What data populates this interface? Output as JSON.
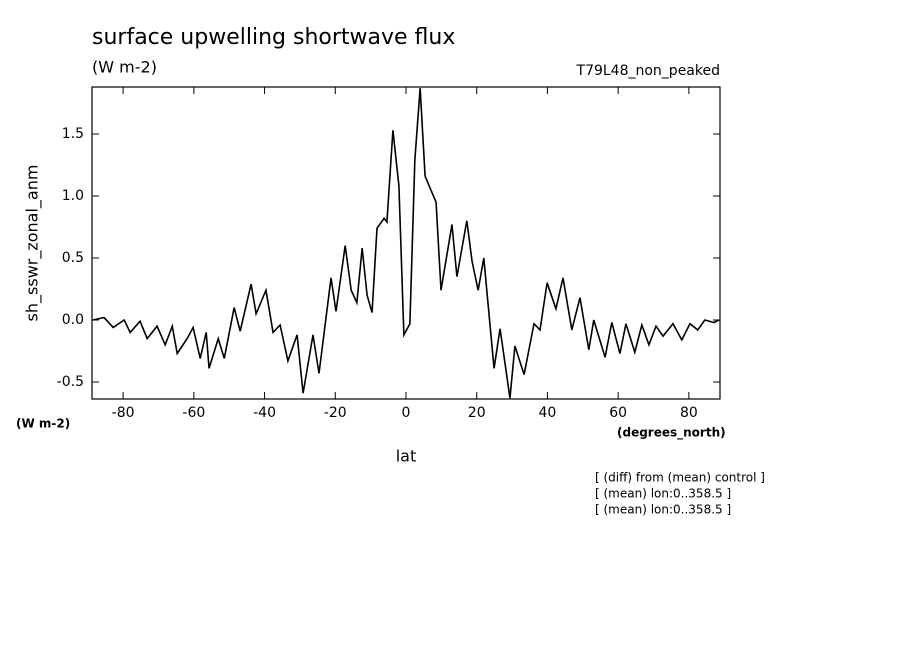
{
  "chart_data": {
    "type": "line",
    "title": "surface upwelling shortwave flux",
    "subtitle": "(W m-2)",
    "dataset": "T79L48_non_peaked",
    "y_label": "sh_sswr_zonal_anm",
    "y_units": "(W m-2)",
    "x_label": "lat",
    "x_units": "(degrees_north)",
    "notes": [
      "[ (diff) from (mean) control ]",
      "[ (mean) lon:0..358.5 ]",
      "[ (mean) lon:0..358.5 ]"
    ],
    "x": [
      -88.5,
      -85.4,
      -82.8,
      -79.7,
      -78.0,
      -75.2,
      -73.2,
      -70.4,
      -68.1,
      -66.1,
      -64.7,
      -61.9,
      -60.2,
      -58.2,
      -56.5,
      -55.7,
      -53.1,
      -51.4,
      -48.6,
      -46.9,
      -43.8,
      -42.4,
      -39.6,
      -37.6,
      -35.6,
      -33.4,
      -30.8,
      -29.1,
      -26.3,
      -24.6,
      -21.2,
      -19.8,
      -17.2,
      -15.5,
      -13.9,
      -12.4,
      -11.0,
      -9.6,
      -8.2,
      -6.2,
      -5.4,
      -3.7,
      -2.0,
      -0.6,
      1.1,
      2.5,
      4.0,
      5.4,
      8.5,
      9.9,
      13.0,
      14.4,
      17.2,
      18.7,
      20.4,
      22.0,
      24.9,
      26.6,
      29.4,
      30.8,
      33.4,
      36.2,
      37.9,
      39.9,
      42.4,
      44.4,
      46.9,
      49.2,
      51.7,
      53.1,
      56.3,
      58.2,
      60.5,
      62.2,
      64.7,
      66.7,
      68.7,
      70.7,
      72.7,
      75.5,
      78.0,
      80.3,
      82.5,
      84.5,
      87.1,
      88.5
    ],
    "series": [
      {
        "color": "#000000",
        "values": [
          0,
          0.02,
          -0.06,
          0,
          -0.1,
          -0.01,
          -0.15,
          -0.05,
          -0.2,
          -0.05,
          -0.27,
          -0.15,
          -0.06,
          -0.31,
          -0.1,
          -0.39,
          -0.15,
          -0.31,
          0.1,
          -0.09,
          0.29,
          0.05,
          0.24,
          -0.1,
          -0.04,
          -0.33,
          -0.12,
          -0.59,
          -0.12,
          -0.43,
          0.34,
          0.07,
          0.6,
          0.24,
          0.14,
          0.58,
          0.2,
          0.06,
          0.74,
          0.82,
          0.79,
          1.53,
          1.08,
          -0.12,
          -0.03,
          1.29,
          1.87,
          1.16,
          0.95,
          0.24,
          0.77,
          0.35,
          0.8,
          0.47,
          0.24,
          0.5,
          -0.39,
          -0.07,
          -0.63,
          -0.21,
          -0.44,
          -0.03,
          -0.08,
          0.3,
          0.09,
          0.34,
          -0.08,
          0.18,
          -0.24,
          0,
          -0.3,
          -0.02,
          -0.27,
          -0.03,
          -0.26,
          -0.04,
          -0.2,
          -0.05,
          -0.13,
          -0.03,
          -0.16,
          -0.03,
          -0.08,
          0,
          -0.02,
          0
        ]
      }
    ],
    "xlim": [
      -88.8,
      88.8
    ],
    "ylim": [
      -0.637,
      1.879
    ],
    "xticks": [
      -80,
      -60,
      -40,
      -20,
      0,
      20,
      40,
      60,
      80
    ],
    "yticks": [
      -0.5,
      {
        "value": 0,
        "label": "0.0"
      },
      0.5,
      {
        "value": 1,
        "label": "1.0"
      },
      1.5
    ]
  }
}
